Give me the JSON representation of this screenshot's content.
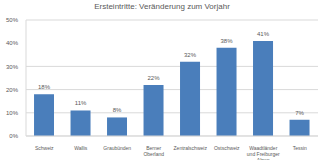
{
  "chart_data": {
    "type": "bar",
    "title": "Ersteintritte: Veränderung zum Vorjahr",
    "categories": [
      "Schweiz",
      "Wallis",
      "Graubünden",
      "Berner Oberland",
      "Zentralschweiz",
      "Ostschweiz",
      "Waadtländer und Freiburger Alpen",
      "Tessin"
    ],
    "values": [
      18,
      11,
      8,
      22,
      32,
      38,
      41,
      7
    ],
    "value_labels": [
      "18%",
      "11%",
      "8%",
      "22%",
      "32%",
      "38%",
      "41%",
      "7%"
    ],
    "data_labels": true,
    "color": "#4a7ebb",
    "ylim": [
      0,
      50
    ],
    "yticks": [
      {
        "value": 0,
        "label": "0%"
      },
      {
        "value": 10,
        "label": "10%"
      },
      {
        "value": 20,
        "label": "20%"
      },
      {
        "value": 30,
        "label": "30%"
      },
      {
        "value": 40,
        "label": "40%"
      },
      {
        "value": 50,
        "label": "50%"
      }
    ],
    "grid": true
  }
}
